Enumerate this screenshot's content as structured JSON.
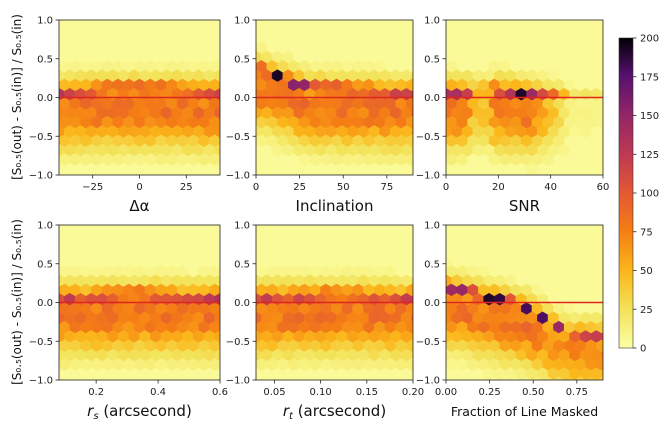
{
  "figure": {
    "ylabel": "[S₀.₅(out) - S₀.₅(in)] / S₀.₅(in)",
    "ylabel_top": "[S₀.₅(out) - S₀.₅(in)] / S₀.₅(in)",
    "ylabel_bottom": "[S₀.₅(out) - S₀.₅(in)] / S₀.₅(in)"
  },
  "chart_data": [
    {
      "type": "heatmap",
      "panel": "delta-alpha",
      "xlabel": "Δα",
      "xlim": [
        -43,
        43
      ],
      "ylim": [
        -1.0,
        1.0
      ],
      "xticks": [
        -25,
        0,
        25
      ],
      "xtick_labels": [
        "−25",
        "0",
        "25"
      ],
      "yticks": [
        -1.0,
        -0.5,
        0.0,
        0.5,
        1.0
      ],
      "ytick_labels": [
        "−1.0",
        "−0.5",
        "0.0",
        "0.5",
        "1.0"
      ],
      "reference_line_y": 0.0,
      "density_ridge": [
        {
          "x": -40,
          "y": 0.08
        },
        {
          "x": -20,
          "y": 0.1
        },
        {
          "x": 0,
          "y": 0.1
        },
        {
          "x": 20,
          "y": 0.1
        },
        {
          "x": 40,
          "y": 0.08
        }
      ],
      "max_count": 200
    },
    {
      "type": "heatmap",
      "panel": "inclination",
      "xlabel": "Inclination",
      "xlim": [
        0,
        90
      ],
      "ylim": [
        -1.0,
        1.0
      ],
      "xticks": [
        0,
        25,
        50,
        75
      ],
      "xtick_labels": [
        "0",
        "25",
        "50",
        "75"
      ],
      "yticks": [
        -1.0,
        -0.5,
        0.0,
        0.5,
        1.0
      ],
      "ytick_labels": [
        "−1.0",
        "−0.5",
        "0.0",
        "0.5",
        "1.0"
      ],
      "reference_line_y": 0.0,
      "density_ridge": [
        {
          "x": 5,
          "y": 0.35
        },
        {
          "x": 15,
          "y": 0.25
        },
        {
          "x": 30,
          "y": 0.12
        },
        {
          "x": 50,
          "y": 0.1
        },
        {
          "x": 85,
          "y": 0.08
        }
      ],
      "max_count": 200
    },
    {
      "type": "heatmap",
      "panel": "snr",
      "xlabel": "SNR",
      "xlim": [
        0,
        60
      ],
      "ylim": [
        -1.0,
        1.0
      ],
      "xticks": [
        0,
        20,
        40,
        60
      ],
      "xtick_labels": [
        "0",
        "20",
        "40",
        "60"
      ],
      "yticks": [
        -1.0,
        -0.5,
        0.0,
        0.5,
        1.0
      ],
      "ytick_labels": [
        "−1.0",
        "−0.5",
        "0.0",
        "0.5",
        "1.0"
      ],
      "reference_line_y": 0.0,
      "density_ridge": [
        {
          "x": 6,
          "y": 0.08
        },
        {
          "x": 15,
          "y": 0.1
        },
        {
          "x": 25,
          "y": 0.08
        },
        {
          "x": 30,
          "y": 0.05
        }
      ],
      "max_count": 200
    },
    {
      "type": "heatmap",
      "panel": "r-s",
      "xlabel": "r_s (arcsecond)",
      "xlabel_var": "r",
      "xlabel_sub": "s",
      "xlabel_unit": " (arcsecond)",
      "xlim": [
        0.08,
        0.6
      ],
      "ylim": [
        -1.0,
        1.0
      ],
      "xticks": [
        0.2,
        0.4,
        0.6
      ],
      "xtick_labels": [
        "0.2",
        "0.4",
        "0.6"
      ],
      "yticks": [
        -1.0,
        -0.5,
        0.0,
        0.5,
        1.0
      ],
      "ytick_labels": [
        "−1.0",
        "−0.5",
        "0.0",
        "0.5",
        "1.0"
      ],
      "reference_line_y": 0.0,
      "density_ridge": [
        {
          "x": 0.1,
          "y": 0.08
        },
        {
          "x": 0.3,
          "y": 0.1
        },
        {
          "x": 0.58,
          "y": 0.08
        }
      ],
      "max_count": 200
    },
    {
      "type": "heatmap",
      "panel": "r-t",
      "xlabel": "r_t (arcsecond)",
      "xlabel_var": "r",
      "xlabel_sub": "t",
      "xlabel_unit": " (arcsecond)",
      "xlim": [
        0.03,
        0.2
      ],
      "ylim": [
        -1.0,
        1.0
      ],
      "xticks": [
        0.05,
        0.1,
        0.15,
        0.2
      ],
      "xtick_labels": [
        "0.05",
        "0.10",
        "0.15",
        "0.20"
      ],
      "yticks": [
        -1.0,
        -0.5,
        0.0,
        0.5,
        1.0
      ],
      "ytick_labels": [
        "−1.0",
        "−0.5",
        "0.0",
        "0.5",
        "1.0"
      ],
      "reference_line_y": 0.0,
      "density_ridge": [
        {
          "x": 0.04,
          "y": 0.08
        },
        {
          "x": 0.12,
          "y": 0.1
        },
        {
          "x": 0.19,
          "y": 0.08
        }
      ],
      "max_count": 200
    },
    {
      "type": "heatmap",
      "panel": "fraction-masked",
      "xlabel": "Fraction of Line Masked",
      "xlim": [
        0.0,
        0.9
      ],
      "ylim": [
        -1.0,
        1.0
      ],
      "xticks": [
        0.0,
        0.25,
        0.5,
        0.75
      ],
      "xtick_labels": [
        "0.00",
        "0.25",
        "0.50",
        "0.75"
      ],
      "yticks": [
        -1.0,
        -0.5,
        0.0,
        0.5,
        1.0
      ],
      "ytick_labels": [
        "−1.0",
        "−0.5",
        "0.0",
        "0.5",
        "1.0"
      ],
      "reference_line_y": 0.0,
      "density_ridge": [
        {
          "x": 0.0,
          "y": 0.2
        },
        {
          "x": 0.2,
          "y": 0.08
        },
        {
          "x": 0.45,
          "y": -0.05
        },
        {
          "x": 0.7,
          "y": -0.4
        }
      ],
      "max_count": 200
    }
  ],
  "colorbar": {
    "colormap": "inferno_r",
    "min": 0,
    "max": 200,
    "ticks": [
      0,
      25,
      50,
      75,
      100,
      125,
      150,
      175,
      200
    ],
    "tick_labels": [
      "0",
      "25",
      "50",
      "75",
      "100",
      "125",
      "150",
      "175",
      "200"
    ]
  },
  "colors": {
    "reference_line": "#e0261c",
    "background_low": "#fcffa4",
    "high": "#000004"
  }
}
